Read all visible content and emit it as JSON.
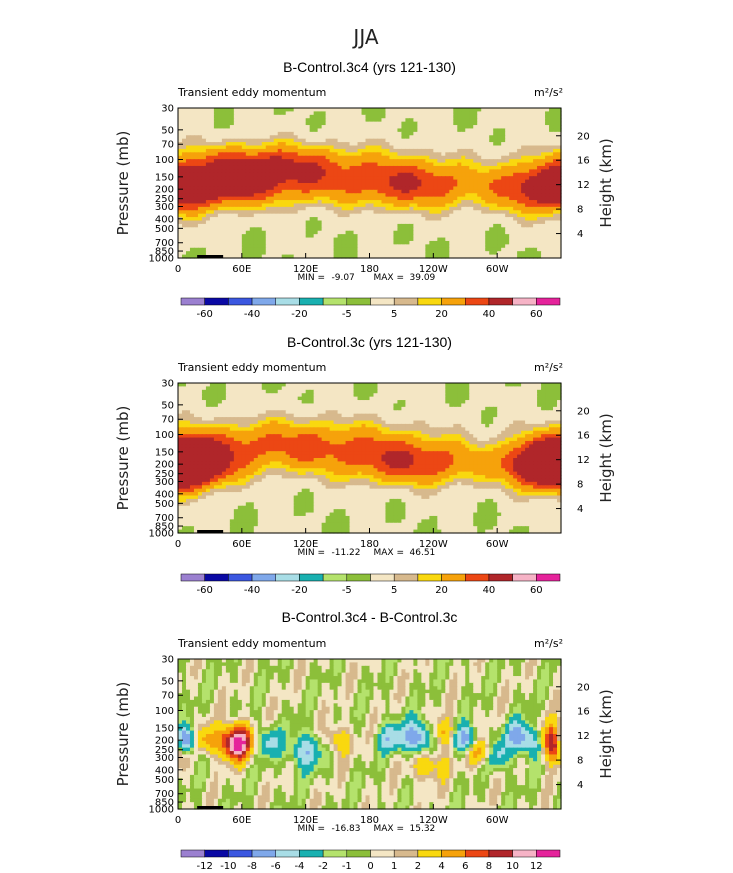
{
  "suptitle": "JJA",
  "colors": {
    "green": "#8cbf3a",
    "cream": "#f4e6c4",
    "tan": "#d7b98d",
    "yellow": "#f9d80f",
    "orange": "#f6a20b",
    "red": "#ec4714",
    "darkred": "#b0262a",
    "pink": "#f6b3c6",
    "magenta": "#e5239b",
    "purple": "#9b80d0",
    "navy": "#0a09a4",
    "blue": "#3b57e0",
    "lightblue": "#7fa8ea",
    "paleblue": "#a8dde6",
    "teal": "#19b0b0",
    "lightgreen": "#b4e26c"
  },
  "chart_data": [
    {
      "type": "heatmap",
      "title": "B-Control.3c4 (yrs 121-130)",
      "left_label": "Transient eddy momentum",
      "units": "m²/s²",
      "ylabel": "Pressure (mb)",
      "ylabel_right": "Height (km)",
      "xlabel": "",
      "x_ticks": [
        "0",
        "60E",
        "120E",
        "180",
        "120W",
        "60W"
      ],
      "x_tick_values": [
        0,
        60,
        120,
        180,
        240,
        300
      ],
      "xlim": [
        0,
        360
      ],
      "y_ticks": [
        "30",
        "50",
        "70",
        "100",
        "150",
        "200",
        "250",
        "300",
        "400",
        "500",
        "700",
        "850",
        "1000"
      ],
      "y_tick_values": [
        30,
        50,
        70,
        100,
        150,
        200,
        250,
        300,
        400,
        500,
        700,
        850,
        1000
      ],
      "ylim": [
        1000,
        30
      ],
      "height_ticks": [
        "4",
        "8",
        "12",
        "16",
        "20"
      ],
      "height_tick_values": [
        4,
        8,
        12,
        16,
        20
      ],
      "min_label": "MIN =",
      "min_value": "-9.07",
      "max_label": "MAX =",
      "max_value": "39.09",
      "colorbar_labels": [
        "-60",
        "-40",
        "-20",
        "-5",
        "5",
        "20",
        "40",
        "60"
      ],
      "colorbar_colors": [
        "#9b80d0",
        "#0a09a4",
        "#3b57e0",
        "#7fa8ea",
        "#a8dde6",
        "#19b0b0",
        "#b4e26c",
        "#8cbf3a",
        "#f4e6c4",
        "#d7b98d",
        "#f9d80f",
        "#f6a20b",
        "#ec4714",
        "#b0262a",
        "#f6b3c6",
        "#e5239b"
      ],
      "features": [
        {
          "lon": 100,
          "p": 140,
          "dlon": 90,
          "dlogp": 0.2,
          "amp": 30
        },
        {
          "lon": 40,
          "p": 180,
          "dlon": 45,
          "dlogp": 0.15,
          "amp": 24
        },
        {
          "lon": 80,
          "p": 105,
          "dlon": 40,
          "dlogp": 0.12,
          "amp": 14
        },
        {
          "lon": 227,
          "p": 185,
          "dlon": 45,
          "dlogp": 0.17,
          "amp": 28
        },
        {
          "lon": 350,
          "p": 210,
          "dlon": 35,
          "dlogp": 0.17,
          "amp": 34
        }
      ]
    },
    {
      "type": "heatmap",
      "title": "B-Control.3c (yrs 121-130)",
      "left_label": "Transient eddy momentum",
      "units": "m²/s²",
      "ylabel": "Pressure (mb)",
      "ylabel_right": "Height (km)",
      "xlabel": "",
      "x_ticks": [
        "0",
        "60E",
        "120E",
        "180",
        "120W",
        "60W"
      ],
      "x_tick_values": [
        0,
        60,
        120,
        180,
        240,
        300
      ],
      "xlim": [
        0,
        360
      ],
      "y_ticks": [
        "30",
        "50",
        "70",
        "100",
        "150",
        "200",
        "250",
        "300",
        "400",
        "500",
        "700",
        "850",
        "1000"
      ],
      "y_tick_values": [
        30,
        50,
        70,
        100,
        150,
        200,
        250,
        300,
        400,
        500,
        700,
        850,
        1000
      ],
      "ylim": [
        1000,
        30
      ],
      "height_ticks": [
        "4",
        "8",
        "12",
        "16",
        "20"
      ],
      "height_tick_values": [
        4,
        8,
        12,
        16,
        20
      ],
      "min_label": "MIN =",
      "min_value": "-11.22",
      "max_label": "MAX =",
      "max_value": "46.51",
      "colorbar_labels": [
        "-60",
        "-40",
        "-20",
        "-5",
        "5",
        "20",
        "40",
        "60"
      ],
      "colorbar_colors": [
        "#9b80d0",
        "#0a09a4",
        "#3b57e0",
        "#7fa8ea",
        "#a8dde6",
        "#19b0b0",
        "#b4e26c",
        "#8cbf3a",
        "#f4e6c4",
        "#d7b98d",
        "#f9d80f",
        "#f6a20b",
        "#ec4714",
        "#b0262a",
        "#f6b3c6",
        "#e5239b"
      ],
      "features": [
        {
          "lon": 110,
          "p": 130,
          "dlon": 85,
          "dlogp": 0.19,
          "amp": 30
        },
        {
          "lon": 0,
          "p": 200,
          "dlon": 30,
          "dlogp": 0.17,
          "amp": 36
        },
        {
          "lon": 360,
          "p": 200,
          "dlon": 30,
          "dlogp": 0.17,
          "amp": 36
        },
        {
          "lon": 225,
          "p": 200,
          "dlon": 45,
          "dlogp": 0.16,
          "amp": 30
        },
        {
          "lon": 355,
          "p": 210,
          "dlon": 30,
          "dlogp": 0.15,
          "amp": 22
        }
      ]
    },
    {
      "type": "heatmap",
      "title": "B-Control.3c4 - B-Control.3c",
      "left_label": "Transient eddy momentum",
      "units": "m²/s²",
      "ylabel": "Pressure (mb)",
      "ylabel_right": "Height (km)",
      "xlabel": "",
      "x_ticks": [
        "0",
        "60E",
        "120E",
        "180",
        "120W",
        "60W"
      ],
      "x_tick_values": [
        0,
        60,
        120,
        180,
        240,
        300
      ],
      "xlim": [
        0,
        360
      ],
      "y_ticks": [
        "30",
        "50",
        "70",
        "100",
        "150",
        "200",
        "250",
        "300",
        "400",
        "500",
        "700",
        "850",
        "1000"
      ],
      "y_tick_values": [
        30,
        50,
        70,
        100,
        150,
        200,
        250,
        300,
        400,
        500,
        700,
        850,
        1000
      ],
      "ylim": [
        1000,
        30
      ],
      "height_ticks": [
        "4",
        "8",
        "12",
        "16",
        "20"
      ],
      "height_tick_values": [
        4,
        8,
        12,
        16,
        20
      ],
      "min_label": "MIN =",
      "min_value": "-16.83",
      "max_label": "MAX =",
      "max_value": "15.32",
      "colorbar_labels": [
        "-12",
        "-10",
        "-8",
        "-6",
        "-4",
        "-2",
        "-1",
        "0",
        "1",
        "2",
        "4",
        "6",
        "8",
        "10",
        "12"
      ],
      "colorbar_colors": [
        "#9b80d0",
        "#0a09a4",
        "#3b57e0",
        "#7fa8ea",
        "#a8dde6",
        "#19b0b0",
        "#b4e26c",
        "#8cbf3a",
        "#f4e6c4",
        "#d7b98d",
        "#f9d80f",
        "#f6a20b",
        "#ec4714",
        "#b0262a",
        "#f6b3c6",
        "#e5239b"
      ],
      "features": [
        {
          "lon": 5,
          "p": 200,
          "dlon": 8,
          "dlogp": 0.1,
          "amp": -16
        },
        {
          "lon": 55,
          "p": 210,
          "dlon": 10,
          "dlogp": 0.12,
          "amp": 14
        },
        {
          "lon": 25,
          "p": 200,
          "dlon": 10,
          "dlogp": 0.1,
          "amp": 5
        },
        {
          "lon": 85,
          "p": 210,
          "dlon": 8,
          "dlogp": 0.1,
          "amp": -5
        },
        {
          "lon": 120,
          "p": 260,
          "dlon": 10,
          "dlogp": 0.12,
          "amp": -6
        },
        {
          "lon": 150,
          "p": 200,
          "dlon": 8,
          "dlogp": 0.1,
          "amp": 4
        },
        {
          "lon": 200,
          "p": 190,
          "dlon": 8,
          "dlogp": 0.1,
          "amp": -5
        },
        {
          "lon": 225,
          "p": 190,
          "dlon": 10,
          "dlogp": 0.12,
          "amp": -8
        },
        {
          "lon": 250,
          "p": 170,
          "dlon": 8,
          "dlogp": 0.1,
          "amp": 5
        },
        {
          "lon": 235,
          "p": 350,
          "dlon": 12,
          "dlogp": 0.12,
          "amp": 4
        },
        {
          "lon": 270,
          "p": 200,
          "dlon": 8,
          "dlogp": 0.1,
          "amp": -8
        },
        {
          "lon": 285,
          "p": 260,
          "dlon": 10,
          "dlogp": 0.1,
          "amp": 6
        },
        {
          "lon": 300,
          "p": 280,
          "dlon": 8,
          "dlogp": 0.1,
          "amp": -6
        },
        {
          "lon": 320,
          "p": 180,
          "dlon": 8,
          "dlogp": 0.1,
          "amp": -7
        },
        {
          "lon": 355,
          "p": 210,
          "dlon": 9,
          "dlogp": 0.12,
          "amp": 15
        },
        {
          "lon": 335,
          "p": 220,
          "dlon": 8,
          "dlogp": 0.1,
          "amp": -5
        }
      ]
    }
  ]
}
